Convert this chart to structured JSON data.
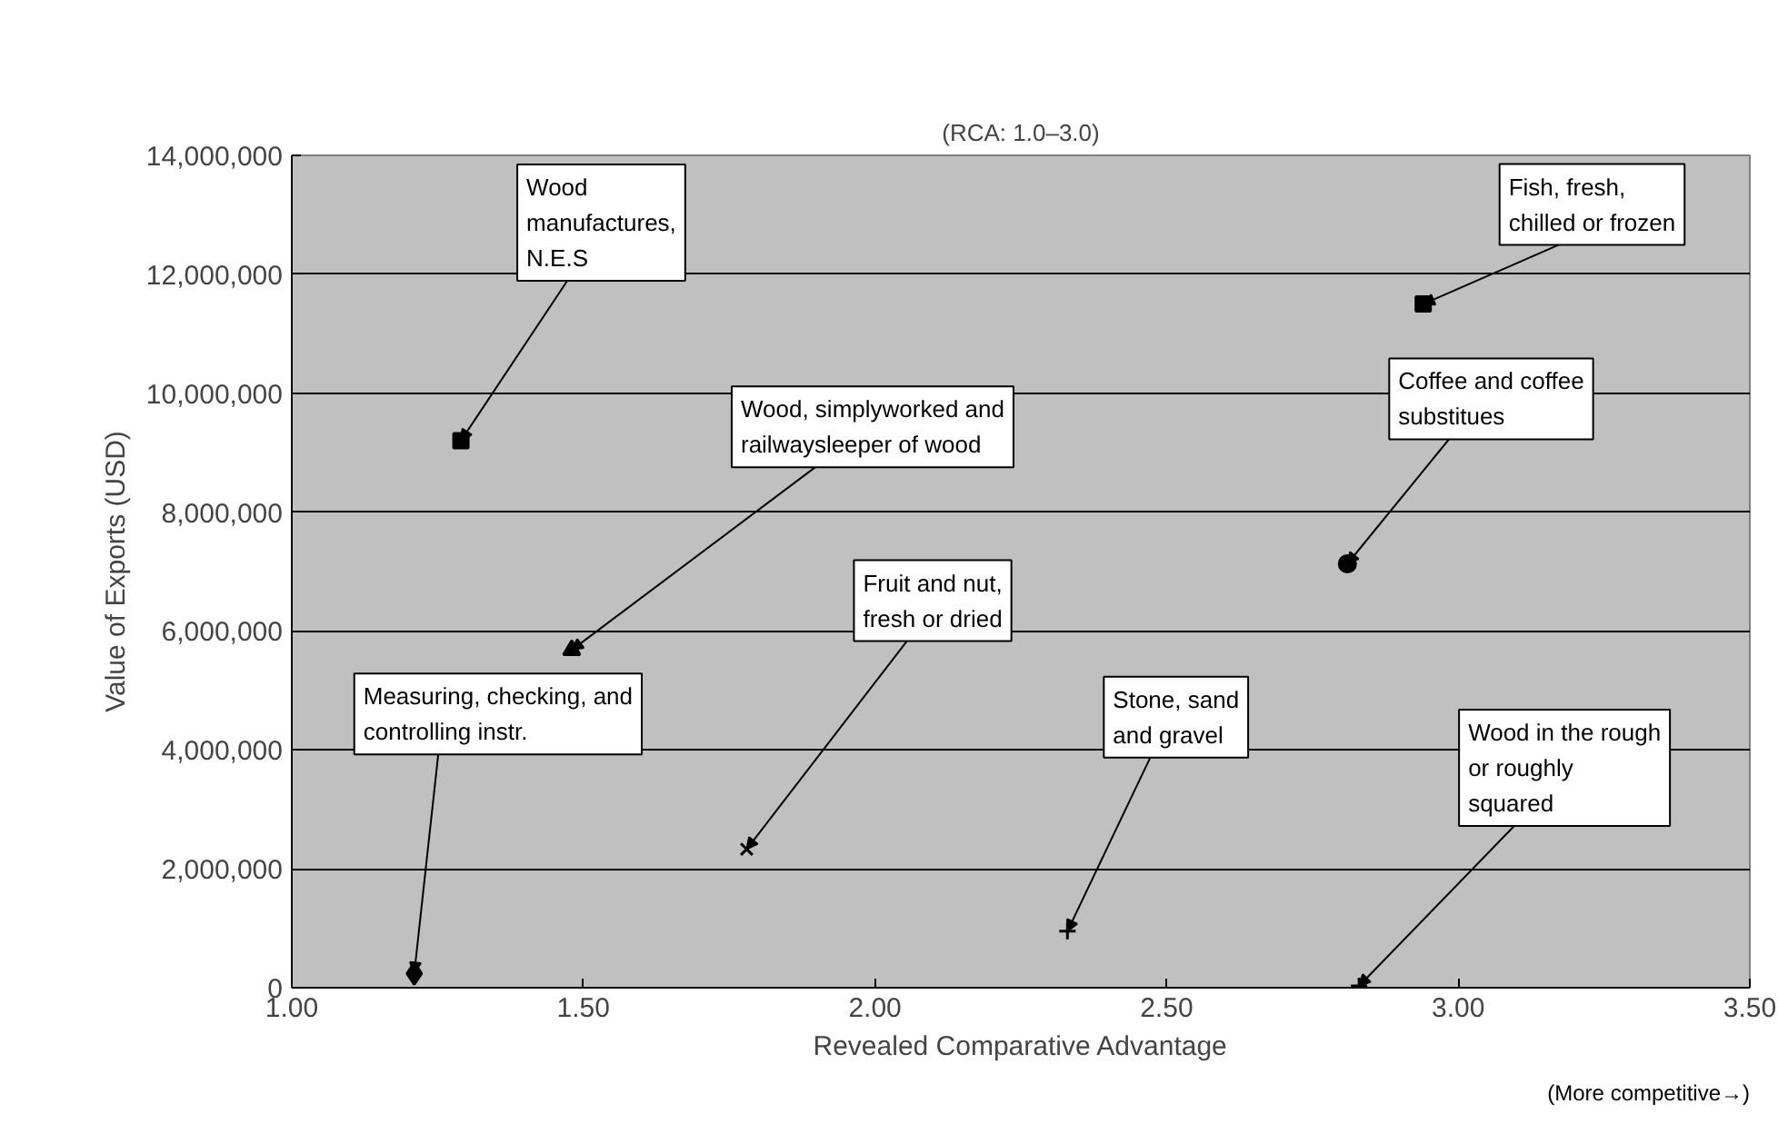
{
  "chart_data": {
    "type": "scatter",
    "title": "(RCA: 1.0–3.0)",
    "xlabel": "Revealed Comparative Advantage",
    "ylabel": "Value of Exports (USD)",
    "xlim": [
      1.0,
      3.5
    ],
    "ylim": [
      0,
      14000000
    ],
    "xticks": [
      {
        "value": 1.0,
        "label": "1.00"
      },
      {
        "value": 1.5,
        "label": "1.50"
      },
      {
        "value": 2.0,
        "label": "2.00"
      },
      {
        "value": 2.5,
        "label": "2.50"
      },
      {
        "value": 3.0,
        "label": "3.00"
      },
      {
        "value": 3.5,
        "label": "3.50"
      }
    ],
    "yticks": [
      {
        "value": 0,
        "label": "0"
      },
      {
        "value": 2000000,
        "label": "2,000,000"
      },
      {
        "value": 4000000,
        "label": "4,000,000"
      },
      {
        "value": 6000000,
        "label": "6,000,000"
      },
      {
        "value": 8000000,
        "label": "8,000,000"
      },
      {
        "value": 10000000,
        "label": "10,000,000"
      },
      {
        "value": 12000000,
        "label": "12,000,000"
      },
      {
        "value": 14000000,
        "label": "14,000,000"
      }
    ],
    "grid": "y",
    "series": [
      {
        "color": "#000000",
        "marker": "square",
        "x": [
          1.29
        ],
        "values": [
          9200000
        ]
      },
      {
        "color": "#000000",
        "marker": "triangle",
        "x": [
          1.48
        ],
        "values": [
          5680000
        ]
      },
      {
        "color": "#000000",
        "marker": "diamond",
        "x": [
          1.21
        ],
        "values": [
          240000
        ]
      },
      {
        "color": "#000000",
        "marker": "x",
        "x": [
          1.78
        ],
        "values": [
          2330000
        ]
      },
      {
        "color": "#000000",
        "marker": "square",
        "x": [
          2.94
        ],
        "values": [
          11500000
        ]
      },
      {
        "color": "#000000",
        "marker": "circle",
        "x": [
          2.81
        ],
        "values": [
          7130000
        ]
      },
      {
        "color": "#000000",
        "marker": "cross",
        "x": [
          2.33
        ],
        "values": [
          950000
        ]
      },
      {
        "color": "#000000",
        "marker": "cross",
        "x": [
          2.83
        ],
        "values": [
          30000
        ]
      }
    ],
    "annotations": [
      {
        "text": "Wood manufactures, N.E.S",
        "x": 1.29,
        "y": 9200000
      },
      {
        "text": "Wood, simplyworked and railwaysleeper of wood",
        "x": 1.48,
        "y": 5680000
      },
      {
        "text": "Measuring, checking, and controlling instr.",
        "x": 1.21,
        "y": 240000
      },
      {
        "text": "Fruit and nut, fresh or dried",
        "x": 1.78,
        "y": 2330000
      },
      {
        "text": "Fish, fresh, chilled or frozen",
        "x": 2.94,
        "y": 11500000
      },
      {
        "text": "Coffee and coffee substitues",
        "x": 2.81,
        "y": 7130000
      },
      {
        "text": "Stone, sand and gravel",
        "x": 2.33,
        "y": 950000
      },
      {
        "text": "Wood in the rough or roughly squared",
        "x": 2.83,
        "y": 30000
      },
      "(More competitive→)"
    ]
  }
}
